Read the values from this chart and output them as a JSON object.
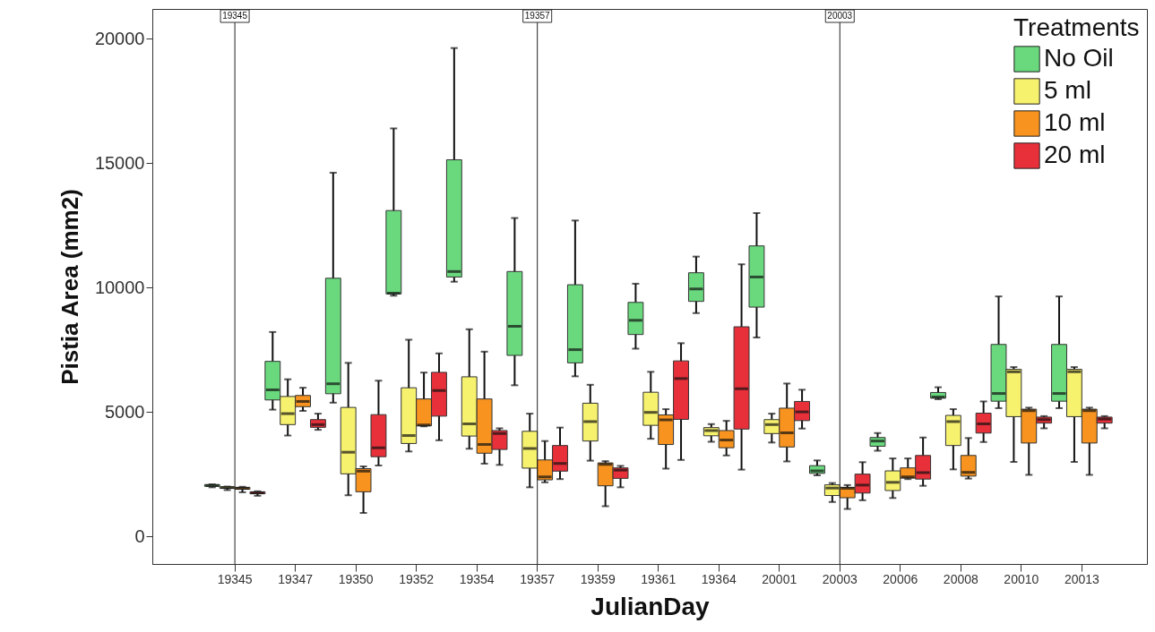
{
  "chart_data": {
    "type": "box",
    "xlabel": "JulianDay",
    "ylabel": "Pistia Area (mm2)",
    "legend_title": "Treatments",
    "legend": "top right",
    "grid": false,
    "categories": [
      "19345",
      "19347",
      "19350",
      "19352",
      "19354",
      "19357",
      "19359",
      "19361",
      "19364",
      "20001",
      "20003",
      "20006",
      "20008",
      "20010",
      "20013"
    ],
    "ylim": [
      -1100,
      21200
    ],
    "yticks": [
      0,
      5000,
      10000,
      15000,
      20000
    ],
    "ref_lines": [
      {
        "axis": "x",
        "value": "19345",
        "label": "19345"
      },
      {
        "axis": "x",
        "value": "19357",
        "label": "19357"
      },
      {
        "axis": "x",
        "value": "20003",
        "label": "20003"
      }
    ],
    "series": [
      {
        "name": "No Oil",
        "color": "#6ad97e",
        "boxes": [
          {
            "low": 1980,
            "q1": 2020,
            "median": 2050,
            "q3": 2090,
            "high": 2100
          },
          {
            "low": 5100,
            "q1": 5490,
            "median": 5900,
            "q3": 7040,
            "high": 8220
          },
          {
            "low": 5380,
            "q1": 5740,
            "median": 6140,
            "q3": 10380,
            "high": 14620
          },
          {
            "low": 9680,
            "q1": 9750,
            "median": 9780,
            "q3": 13100,
            "high": 16400
          },
          {
            "low": 10240,
            "q1": 10430,
            "median": 10650,
            "q3": 15140,
            "high": 19630
          },
          {
            "low": 6080,
            "q1": 7280,
            "median": 8450,
            "q3": 10650,
            "high": 12800
          },
          {
            "low": 6440,
            "q1": 6980,
            "median": 7510,
            "q3": 10120,
            "high": 12700
          },
          {
            "low": 7550,
            "q1": 8120,
            "median": 8690,
            "q3": 9410,
            "high": 10160
          },
          {
            "low": 8980,
            "q1": 9450,
            "median": 9950,
            "q3": 10600,
            "high": 11250
          },
          {
            "low": 8000,
            "q1": 9220,
            "median": 10430,
            "q3": 11680,
            "high": 13000
          },
          {
            "low": 2460,
            "q1": 2540,
            "median": 2640,
            "q3": 2850,
            "high": 3060
          },
          {
            "low": 3450,
            "q1": 3630,
            "median": 3840,
            "q3": 3980,
            "high": 4160
          },
          {
            "low": 5520,
            "q1": 5560,
            "median": 5610,
            "q3": 5790,
            "high": 6000
          },
          {
            "low": 5160,
            "q1": 5440,
            "median": 5750,
            "q3": 7720,
            "high": 9650
          },
          {
            "low": 5160,
            "q1": 5440,
            "median": 5750,
            "q3": 7720,
            "high": 9650
          }
        ]
      },
      {
        "name": "5 ml",
        "color": "#f7f26e",
        "boxes": [
          {
            "low": 1870,
            "q1": 1940,
            "median": 1970,
            "q3": 2000,
            "high": 2010
          },
          {
            "low": 4060,
            "q1": 4500,
            "median": 4940,
            "q3": 5630,
            "high": 6320
          },
          {
            "low": 1660,
            "q1": 2520,
            "median": 3390,
            "q3": 5190,
            "high": 6980
          },
          {
            "low": 3420,
            "q1": 3740,
            "median": 4060,
            "q3": 5980,
            "high": 7910
          },
          {
            "low": 3530,
            "q1": 4040,
            "median": 4530,
            "q3": 6420,
            "high": 8330
          },
          {
            "low": 1980,
            "q1": 2750,
            "median": 3540,
            "q3": 4230,
            "high": 4940
          },
          {
            "low": 3050,
            "q1": 3840,
            "median": 4620,
            "q3": 5360,
            "high": 6100
          },
          {
            "low": 3930,
            "q1": 4470,
            "median": 4990,
            "q3": 5800,
            "high": 6620
          },
          {
            "low": 3810,
            "q1": 4050,
            "median": 4260,
            "q3": 4380,
            "high": 4520
          },
          {
            "low": 3780,
            "q1": 4140,
            "median": 4500,
            "q3": 4700,
            "high": 4940
          },
          {
            "low": 1390,
            "q1": 1650,
            "median": 1950,
            "q3": 2080,
            "high": 2150
          },
          {
            "low": 1550,
            "q1": 1850,
            "median": 2180,
            "q3": 2640,
            "high": 3140
          },
          {
            "low": 2700,
            "q1": 3660,
            "median": 4620,
            "q3": 4870,
            "high": 5120
          },
          {
            "low": 3000,
            "q1": 4820,
            "median": 6620,
            "q3": 6720,
            "high": 6810
          },
          {
            "low": 3000,
            "q1": 4820,
            "median": 6620,
            "q3": 6720,
            "high": 6810
          }
        ]
      },
      {
        "name": "10 ml",
        "color": "#f7931e",
        "boxes": [
          {
            "low": 1780,
            "q1": 1900,
            "median": 1940,
            "q3": 1980,
            "high": 2000
          },
          {
            "low": 5050,
            "q1": 5220,
            "median": 5430,
            "q3": 5670,
            "high": 5980
          },
          {
            "low": 950,
            "q1": 1800,
            "median": 2630,
            "q3": 2730,
            "high": 2820
          },
          {
            "low": 4430,
            "q1": 4450,
            "median": 4480,
            "q3": 5530,
            "high": 6590
          },
          {
            "low": 2930,
            "q1": 3350,
            "median": 3700,
            "q3": 5530,
            "high": 7430
          },
          {
            "low": 2180,
            "q1": 2280,
            "median": 2400,
            "q3": 3080,
            "high": 3840
          },
          {
            "low": 1220,
            "q1": 2040,
            "median": 2900,
            "q3": 2960,
            "high": 3030
          },
          {
            "low": 2730,
            "q1": 3700,
            "median": 4690,
            "q3": 4890,
            "high": 5120
          },
          {
            "low": 3260,
            "q1": 3570,
            "median": 3880,
            "q3": 4260,
            "high": 4650
          },
          {
            "low": 3020,
            "q1": 3600,
            "median": 4170,
            "q3": 5160,
            "high": 6150
          },
          {
            "low": 1110,
            "q1": 1560,
            "median": 1940,
            "q3": 1980,
            "high": 2070
          },
          {
            "low": 2310,
            "q1": 2350,
            "median": 2400,
            "q3": 2760,
            "high": 3140
          },
          {
            "low": 2330,
            "q1": 2430,
            "median": 2580,
            "q3": 3260,
            "high": 3960
          },
          {
            "low": 2480,
            "q1": 3760,
            "median": 5060,
            "q3": 5120,
            "high": 5180
          },
          {
            "low": 2480,
            "q1": 3760,
            "median": 5060,
            "q3": 5120,
            "high": 5180
          }
        ]
      },
      {
        "name": "20 ml",
        "color": "#e8303a",
        "boxes": [
          {
            "low": 1640,
            "q1": 1720,
            "median": 1760,
            "q3": 1800,
            "high": 1820
          },
          {
            "low": 4290,
            "q1": 4390,
            "median": 4500,
            "q3": 4700,
            "high": 4940
          },
          {
            "low": 2860,
            "q1": 3210,
            "median": 3570,
            "q3": 4900,
            "high": 6260
          },
          {
            "low": 3870,
            "q1": 4840,
            "median": 5870,
            "q3": 6600,
            "high": 7360
          },
          {
            "low": 2880,
            "q1": 3500,
            "median": 4140,
            "q3": 4260,
            "high": 4350
          },
          {
            "low": 2310,
            "q1": 2630,
            "median": 2940,
            "q3": 3660,
            "high": 4380
          },
          {
            "low": 1980,
            "q1": 2340,
            "median": 2670,
            "q3": 2760,
            "high": 2840
          },
          {
            "low": 3080,
            "q1": 4710,
            "median": 6350,
            "q3": 7060,
            "high": 7770
          },
          {
            "low": 2690,
            "q1": 4320,
            "median": 5940,
            "q3": 8430,
            "high": 10940
          },
          {
            "low": 4340,
            "q1": 4660,
            "median": 5010,
            "q3": 5430,
            "high": 5900
          },
          {
            "low": 1460,
            "q1": 1750,
            "median": 2070,
            "q3": 2510,
            "high": 2990
          },
          {
            "low": 2040,
            "q1": 2310,
            "median": 2570,
            "q3": 3260,
            "high": 3980
          },
          {
            "low": 3800,
            "q1": 4160,
            "median": 4530,
            "q3": 4960,
            "high": 5430
          },
          {
            "low": 4350,
            "q1": 4560,
            "median": 4700,
            "q3": 4800,
            "high": 4840
          },
          {
            "low": 4350,
            "q1": 4560,
            "median": 4720,
            "q3": 4800,
            "high": 4840
          }
        ]
      }
    ]
  }
}
